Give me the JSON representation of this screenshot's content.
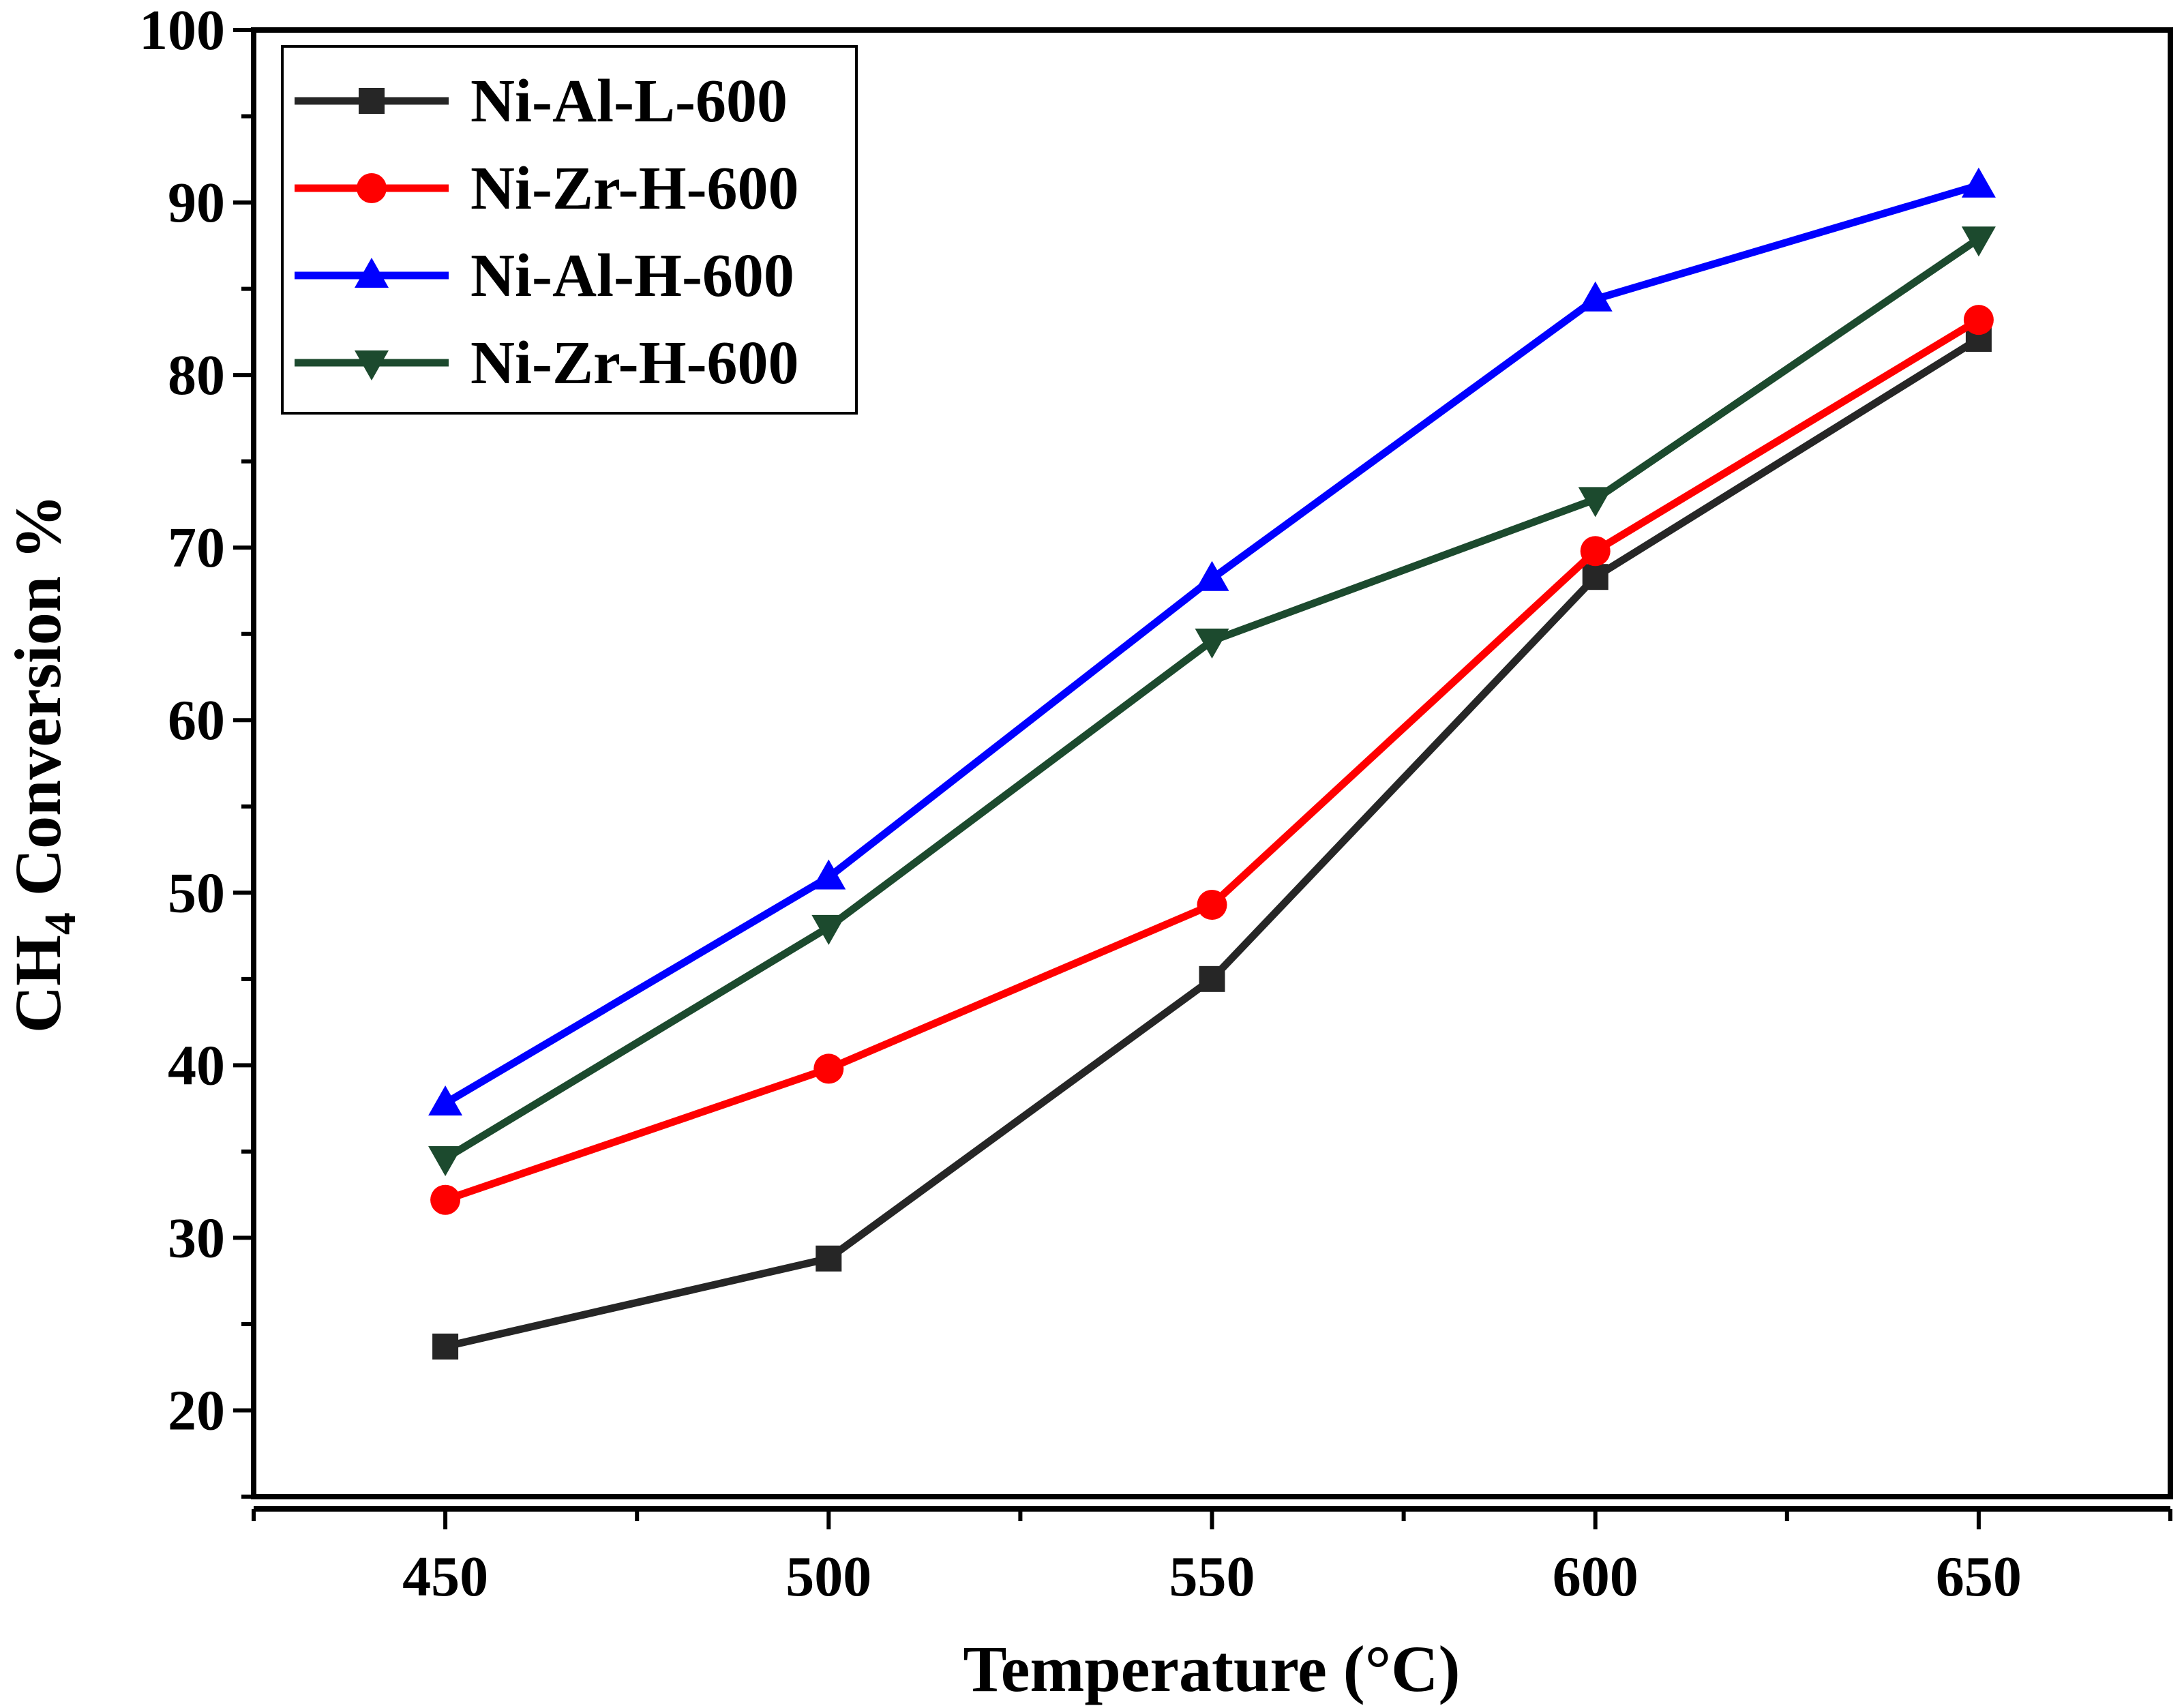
{
  "chart_data": {
    "type": "line",
    "title": "",
    "xlabel": "Temperature (°C)",
    "ylabel_main": "CH",
    "ylabel_sub": "4",
    "ylabel_rest": " Conversion %",
    "x": [
      450,
      500,
      550,
      600,
      650
    ],
    "xticks": [
      "450",
      "500",
      "550",
      "600",
      "650"
    ],
    "yticks": [
      "20",
      "30",
      "40",
      "50",
      "60",
      "70",
      "80",
      "90",
      "100"
    ],
    "xlim": [
      425,
      675
    ],
    "ylim": [
      15,
      100
    ],
    "grid": false,
    "legend_position": "top-left",
    "series": [
      {
        "name": "Ni-Al-L-600",
        "color": "#262626",
        "marker": "square",
        "values": [
          23.7,
          28.8,
          45.0,
          68.3,
          82.1
        ]
      },
      {
        "name": "Ni-Zr-H-600",
        "color": "#ff0000",
        "marker": "circle",
        "values": [
          32.2,
          39.8,
          49.3,
          69.8,
          83.2
        ]
      },
      {
        "name": "Ni-Al-H-600",
        "color": "#0000ff",
        "marker": "triangle-up",
        "values": [
          37.8,
          50.9,
          68.2,
          84.4,
          91.0
        ]
      },
      {
        "name": "Ni-Zr-H-600",
        "color": "#1c4a2e",
        "marker": "triangle-down",
        "values": [
          34.6,
          48.0,
          64.6,
          72.8,
          87.9
        ]
      }
    ]
  }
}
